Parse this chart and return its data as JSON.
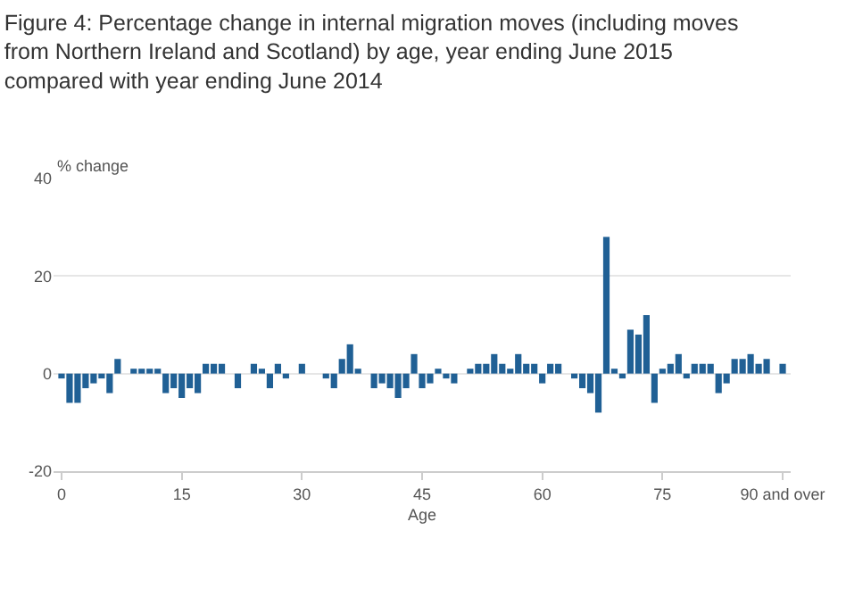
{
  "chart_data": {
    "type": "bar",
    "title": "Figure 4: Percentage change in internal migration moves (including moves from Northern Ireland and Scotland) by age, year ending June 2015 compared with year ending June 2014",
    "xlabel": "Age",
    "ylabel": "% change",
    "categories": [
      "0",
      null,
      null,
      null,
      null,
      null,
      null,
      null,
      null,
      null,
      null,
      null,
      null,
      null,
      null,
      "15",
      null,
      null,
      null,
      null,
      null,
      null,
      null,
      null,
      null,
      null,
      null,
      null,
      null,
      null,
      "30",
      null,
      null,
      null,
      null,
      null,
      null,
      null,
      null,
      null,
      null,
      null,
      null,
      null,
      null,
      "45",
      null,
      null,
      null,
      null,
      null,
      null,
      null,
      null,
      null,
      null,
      null,
      null,
      null,
      null,
      "60",
      null,
      null,
      null,
      null,
      null,
      null,
      null,
      null,
      null,
      null,
      null,
      null,
      null,
      null,
      "75",
      null,
      null,
      null,
      null,
      null,
      null,
      null,
      null,
      null,
      null,
      null,
      null,
      null,
      null,
      "90 and over"
    ],
    "values": [
      -1,
      -6,
      -6,
      -3,
      -2,
      -1,
      -4,
      3,
      0,
      1,
      1,
      1,
      1,
      -4,
      -3,
      -5,
      -3,
      -4,
      2,
      2,
      2,
      0,
      -3,
      0,
      2,
      1,
      -3,
      2,
      -1,
      0,
      2,
      0,
      0,
      -1,
      -3,
      3,
      6,
      1,
      0,
      -3,
      -2,
      -3,
      -5,
      -3,
      4,
      -3,
      -2,
      1,
      -1,
      -2,
      0,
      1,
      2,
      2,
      4,
      2,
      1,
      4,
      2,
      2,
      -2,
      2,
      2,
      0,
      -1,
      -3,
      -4,
      -8,
      28,
      1,
      -1,
      9,
      8,
      12,
      -6,
      1,
      2,
      4,
      -1,
      2,
      2,
      2,
      -4,
      -2,
      3,
      3,
      4,
      2,
      3,
      0,
      2
    ],
    "color": "#206095",
    "ylim": [
      -20,
      40
    ],
    "yticks": [
      -20,
      0,
      20,
      40
    ],
    "grid": "y"
  }
}
